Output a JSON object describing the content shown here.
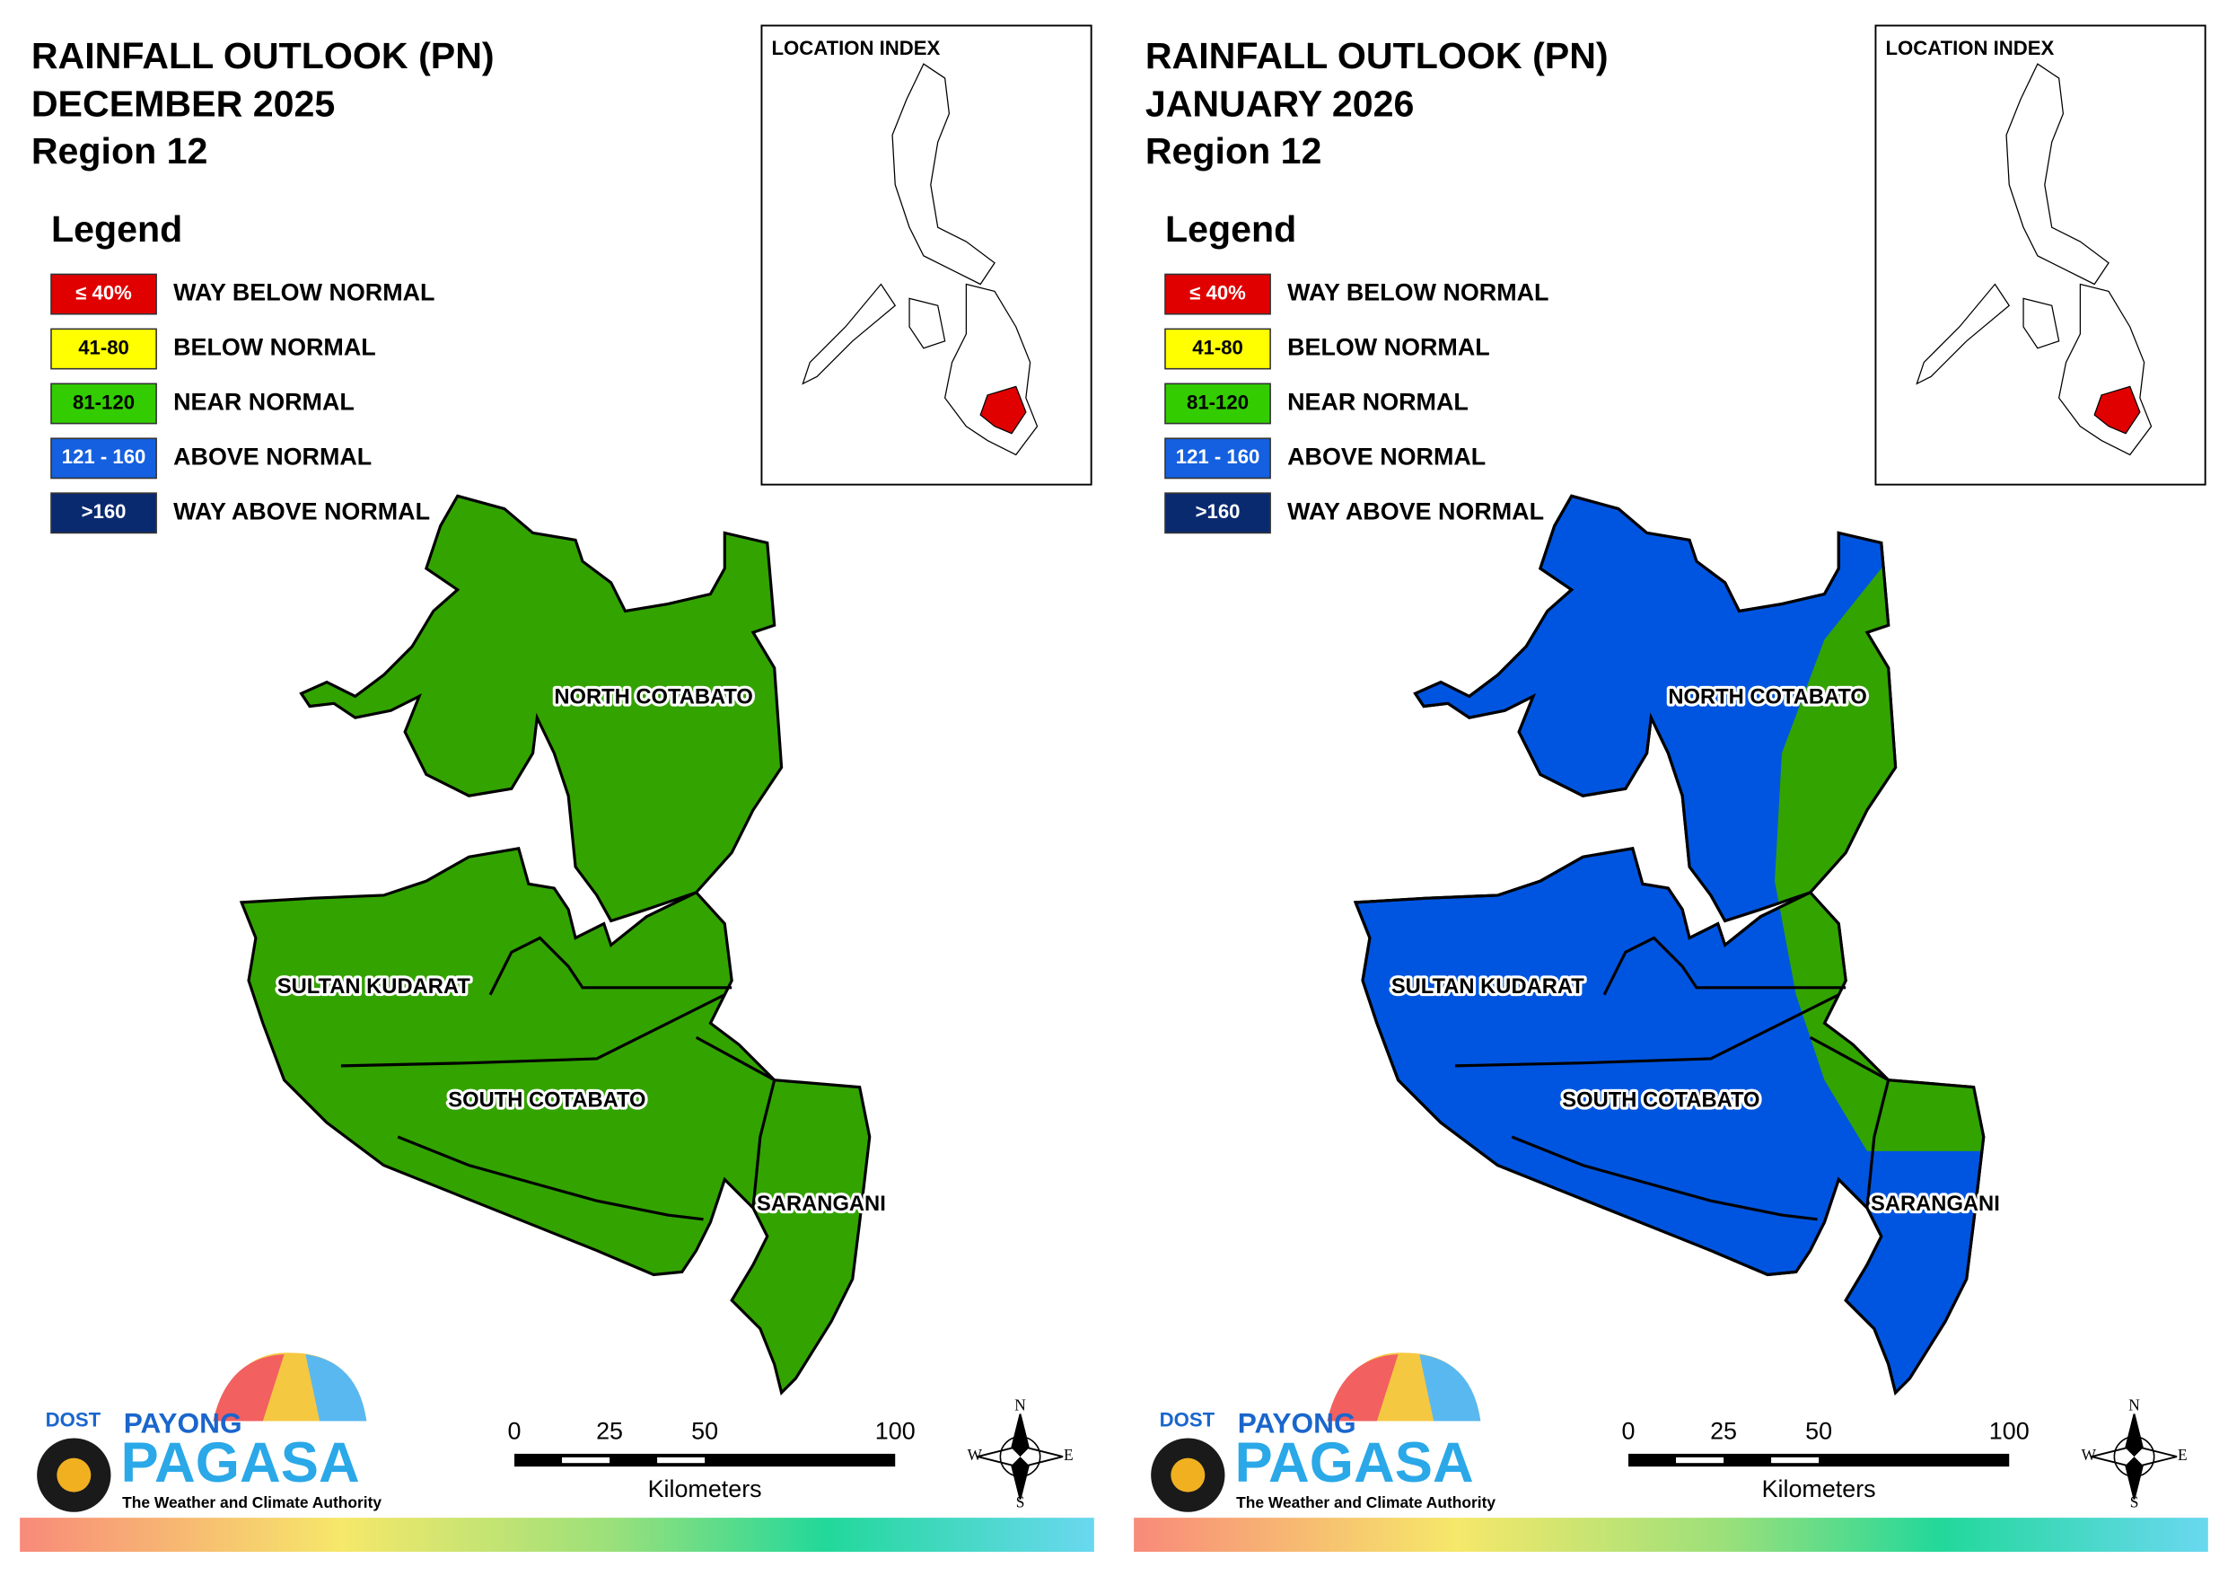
{
  "panels": [
    {
      "title": "RAINFALL OUTLOOK (PN)",
      "period": "DECEMBER 2025",
      "region": "Region 12"
    },
    {
      "title": "RAINFALL OUTLOOK (PN)",
      "period": "JANUARY 2026",
      "region": "Region 12"
    }
  ],
  "legend": {
    "title": "Legend",
    "items": [
      {
        "range": "≤ 40%",
        "label": "WAY BELOW NORMAL",
        "color": "#e00000"
      },
      {
        "range": "41-80",
        "label": "BELOW NORMAL",
        "color": "#ffff00"
      },
      {
        "range": "81-120",
        "label": "NEAR NORMAL",
        "color": "#33cc00"
      },
      {
        "range": "121 - 160",
        "label": "ABOVE NORMAL",
        "color": "#1460e0"
      },
      {
        "range": ">160",
        "label": "WAY ABOVE NORMAL",
        "color": "#0a2a70"
      }
    ]
  },
  "location_index": "LOCATION INDEX",
  "provinces": [
    "NORTH COTABATO",
    "SULTAN KUDARAT",
    "SOUTH COTABATO",
    "SARANGANI"
  ],
  "scale_bar": {
    "ticks": [
      0,
      25,
      50,
      100
    ],
    "unit": "Kilometers"
  },
  "compass": {
    "n": "N",
    "e": "E",
    "s": "S",
    "w": "W"
  },
  "logo": {
    "dost": "DOST",
    "payong": "PAYONG",
    "pagasa": "PAGASA",
    "tagline": "The Weather and Climate Authority"
  }
}
